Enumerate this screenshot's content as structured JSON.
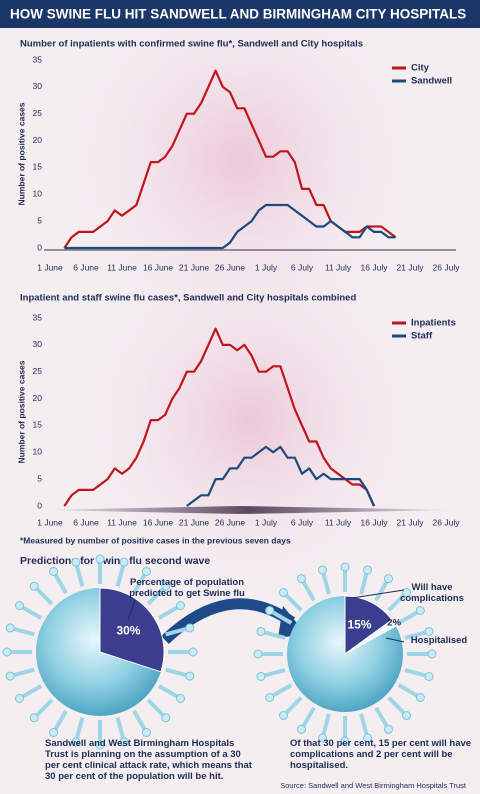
{
  "title": "HOW SWINE FLU HIT SANDWELL AND BIRMINGHAM CITY HOSPITALS",
  "footnote": "*Measured by number of positive cases in the previous seven days",
  "section_title": "Predictions for swine flu second wave",
  "source": "Source: Sandwell and West Birmingham Hospitals Trust",
  "chart_data": [
    {
      "type": "line",
      "title": "Number of inpatients with confirmed swine flu*, Sandwell and City hospitals",
      "y_label": "Number of positive cases",
      "x": [
        "3 June",
        "4 June",
        "5 June",
        "6 June",
        "7 June",
        "8 June",
        "9 June",
        "10 June",
        "11 June",
        "12 June",
        "13 June",
        "14 June",
        "15 June",
        "16 June",
        "17 June",
        "18 June",
        "19 June",
        "20 June",
        "21 June",
        "22 June",
        "23 June",
        "24 June",
        "25 June",
        "26 June",
        "27 June",
        "28 June",
        "29 June",
        "30 June",
        "1 July",
        "2 July",
        "3 July",
        "4 July",
        "5 July",
        "6 July",
        "7 July",
        "8 July",
        "9 July",
        "10 July",
        "11 July",
        "12 July",
        "13 July",
        "14 July",
        "15 July",
        "16 July",
        "17 July",
        "18 July",
        "19 July"
      ],
      "series": [
        {
          "name": "City",
          "color": "#c0141e",
          "values": [
            0,
            2,
            3,
            3,
            3,
            4,
            5,
            7,
            6,
            7,
            8,
            12,
            16,
            16,
            17,
            19,
            22,
            25,
            25,
            27,
            30,
            33,
            30,
            29,
            26,
            26,
            23,
            20,
            17,
            17,
            18,
            18,
            16,
            11,
            11,
            8,
            8,
            5,
            4,
            3,
            3,
            3,
            4,
            4,
            4,
            3,
            2
          ]
        },
        {
          "name": "Sandwell",
          "color": "#1c4a7a",
          "values": [
            0,
            0,
            0,
            0,
            0,
            0,
            0,
            0,
            0,
            0,
            0,
            0,
            0,
            0,
            0,
            0,
            0,
            0,
            0,
            0,
            0,
            0,
            0,
            1,
            3,
            4,
            5,
            7,
            8,
            8,
            8,
            8,
            7,
            6,
            5,
            4,
            4,
            5,
            4,
            3,
            2,
            2,
            4,
            3,
            3,
            2,
            2
          ]
        }
      ],
      "xlim": [
        "1 June",
        "26 July"
      ],
      "xticks": [
        "1 June",
        "6 June",
        "11 June",
        "16 June",
        "21 June",
        "26 June",
        "1 July",
        "6 July",
        "11 July",
        "16 July",
        "21 July",
        "26 July"
      ],
      "ylim": [
        0,
        35
      ],
      "yticks": [
        0,
        5,
        10,
        15,
        20,
        25,
        30,
        35
      ],
      "grid": false,
      "legend": "top-right"
    },
    {
      "type": "line",
      "title": "Inpatient and staff swine flu cases*, Sandwell and City hospitals combined",
      "y_label": "Number of positive cases",
      "x": [
        "3 June",
        "4 June",
        "5 June",
        "6 June",
        "7 June",
        "8 June",
        "9 June",
        "10 June",
        "11 June",
        "12 June",
        "13 June",
        "14 June",
        "15 June",
        "16 June",
        "17 June",
        "18 June",
        "19 June",
        "20 June",
        "21 June",
        "22 June",
        "23 June",
        "24 June",
        "25 June",
        "26 June",
        "27 June",
        "28 June",
        "29 June",
        "30 June",
        "1 July",
        "2 July",
        "3 July",
        "4 July",
        "5 July",
        "6 July",
        "7 July",
        "8 July",
        "9 July",
        "10 July",
        "11 July",
        "12 July",
        "13 July",
        "14 July",
        "15 July",
        "16 July"
      ],
      "series": [
        {
          "name": "Inpatients",
          "color": "#c0141e",
          "values": [
            0,
            2,
            3,
            3,
            3,
            4,
            5,
            7,
            6,
            7,
            9,
            12,
            16,
            16,
            17,
            20,
            22,
            25,
            25,
            27,
            30,
            33,
            30,
            30,
            29,
            30,
            28,
            25,
            25,
            26,
            26,
            22,
            18,
            15,
            12,
            12,
            9,
            7,
            6,
            5,
            4,
            4,
            3,
            0
          ]
        },
        {
          "name": "Staff",
          "color": "#1c4a7a",
          "values": [
            null,
            null,
            null,
            null,
            null,
            null,
            null,
            null,
            null,
            null,
            null,
            null,
            null,
            null,
            null,
            null,
            null,
            0,
            1,
            2,
            2,
            5,
            5,
            7,
            7,
            9,
            9,
            10,
            11,
            10,
            11,
            9,
            9,
            6,
            7,
            5,
            6,
            5,
            5,
            5,
            5,
            5,
            3,
            0
          ]
        }
      ],
      "xlim": [
        "1 June",
        "26 July"
      ],
      "xticks": [
        "1 June",
        "6 June",
        "11 June",
        "16 June",
        "21 June",
        "26 June",
        "1 July",
        "6 July",
        "11 July",
        "16 July",
        "21 July",
        "26 July"
      ],
      "ylim": [
        0,
        35
      ],
      "yticks": [
        0,
        5,
        10,
        15,
        20,
        25,
        30,
        35
      ],
      "grid": false,
      "legend": "top-right"
    },
    {
      "type": "pie",
      "categories": [
        "Percentage of population predicted to get Swine flu"
      ],
      "values": [
        30
      ],
      "value_labels": [
        "30%"
      ],
      "colors": [
        "#3b3d8f"
      ],
      "caption": "Sandwell and West Birmingham Hospitals Trust is planning on the assumption of a 30 per cent clinical attack rate, which means that 30 per cent of the population will be hit."
    },
    {
      "type": "pie",
      "categories": [
        "Will have complications",
        "Hospitalised"
      ],
      "values": [
        15,
        2
      ],
      "value_labels": [
        "15%",
        "2%"
      ],
      "colors": [
        "#3b3d8f",
        "#f4f6fb"
      ],
      "caption": "Of that 30 per cent, 15 per cent will have complications and 2 per cent will be hospitalised."
    }
  ]
}
